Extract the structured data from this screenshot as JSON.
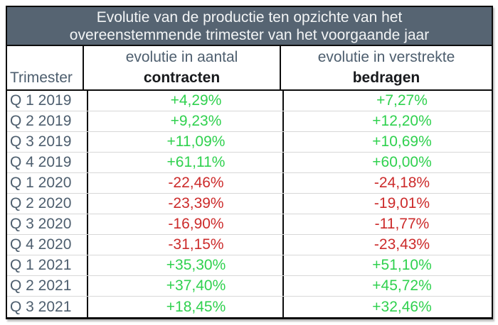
{
  "title": {
    "line1": "Evolutie van de productie ten opzichte van het",
    "line2": "overeenstemmende trimester van het voorgaande jaar"
  },
  "columns": {
    "trimester": "Trimester",
    "contracts_top": "evolutie in aantal",
    "contracts_bottom": "contracten",
    "amounts_top": "evolutie in verstrekte",
    "amounts_bottom": "bedragen"
  },
  "rows": [
    {
      "trimester": "Q 1 2019",
      "contracts": "+4,29%",
      "amounts": "+7,27%"
    },
    {
      "trimester": "Q 2 2019",
      "contracts": "+9,23%",
      "amounts": "+12,20%"
    },
    {
      "trimester": "Q 3 2019",
      "contracts": "+11,09%",
      "amounts": "+10,69%"
    },
    {
      "trimester": "Q 4 2019",
      "contracts": "+61,11%",
      "amounts": "+60,00%"
    },
    {
      "trimester": "Q 1 2020",
      "contracts": "-22,46%",
      "amounts": "-24,18%"
    },
    {
      "trimester": "Q 2 2020",
      "contracts": "-23,39%",
      "amounts": "-19,01%"
    },
    {
      "trimester": "Q 3 2020",
      "contracts": "-16,90%",
      "amounts": "-11,77%"
    },
    {
      "trimester": "Q 4 2020",
      "contracts": "-31,15%",
      "amounts": "-23,43%"
    },
    {
      "trimester": "Q 1 2021",
      "contracts": "+35,30%",
      "amounts": "+51,10%"
    },
    {
      "trimester": "Q 2 2021",
      "contracts": "+37,40%",
      "amounts": "+45,72%"
    },
    {
      "trimester": "Q 3 2021",
      "contracts": "+18,45%",
      "amounts": "+32,46%"
    }
  ],
  "colors": {
    "positive": "#2fd14e",
    "negative": "#cc2b2b",
    "banner_bg": "#566472",
    "banner_text": "#f3f5f6",
    "label": "#4d5e6e"
  },
  "chart_data": {
    "type": "table",
    "title": "Evolutie van de productie ten opzichte van het overeenstemmende trimester van het voorgaande jaar",
    "categories": [
      "Q 1 2019",
      "Q 2 2019",
      "Q 3 2019",
      "Q 4 2019",
      "Q 1 2020",
      "Q 2 2020",
      "Q 3 2020",
      "Q 4 2020",
      "Q 1 2021",
      "Q 2 2021",
      "Q 3 2021"
    ],
    "series": [
      {
        "name": "evolutie in aantal contracten (%)",
        "values": [
          4.29,
          9.23,
          11.09,
          61.11,
          -22.46,
          -23.39,
          -16.9,
          -31.15,
          35.3,
          37.4,
          18.45
        ]
      },
      {
        "name": "evolutie in verstrekte bedragen (%)",
        "values": [
          7.27,
          12.2,
          10.69,
          60.0,
          -24.18,
          -19.01,
          -11.77,
          -23.43,
          51.1,
          45.72,
          32.46
        ]
      }
    ],
    "value_format": "percent, comma decimal separator, explicit sign",
    "color_coding": "positive values green, negative values red"
  }
}
